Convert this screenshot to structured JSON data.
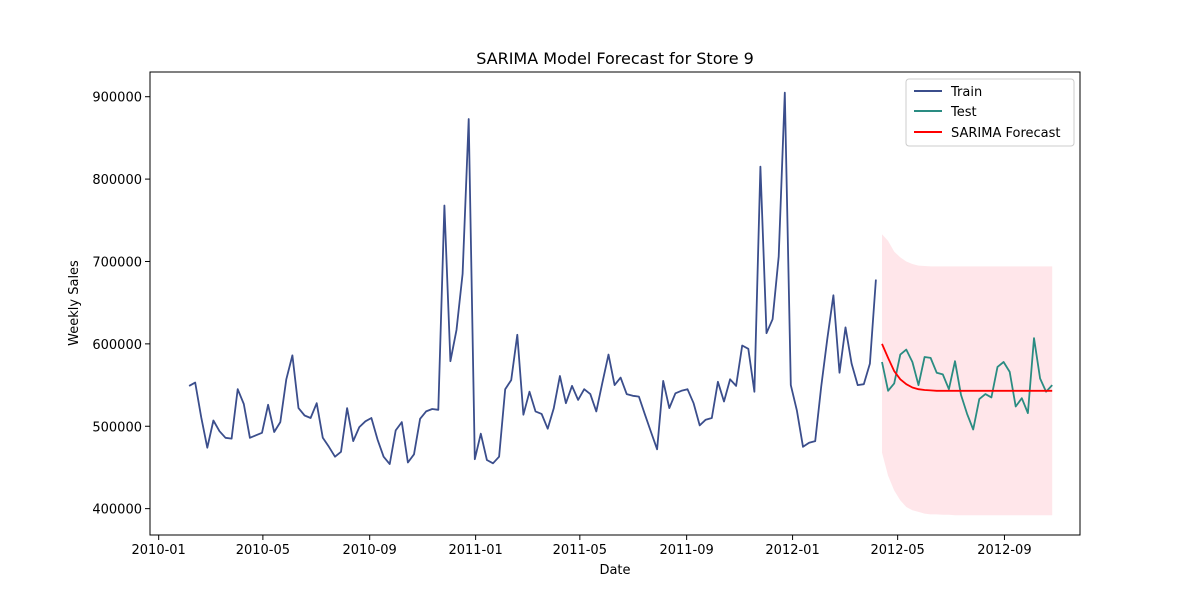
{
  "chart_data": {
    "type": "line",
    "title": "SARIMA Model Forecast for Store 9",
    "xlabel": "Date",
    "ylabel": "Weekly Sales",
    "xlim": [
      "2009-12-22",
      "2012-11-27"
    ],
    "ylim": [
      368000,
      930000
    ],
    "x_ticks": [
      "2010-01-01",
      "2010-05-01",
      "2010-09-01",
      "2011-01-01",
      "2011-05-01",
      "2011-09-01",
      "2012-01-01",
      "2012-05-01",
      "2012-09-01"
    ],
    "x_tick_labels": [
      "2010-01",
      "2010-05",
      "2010-09",
      "2011-01",
      "2011-05",
      "2011-09",
      "2012-01",
      "2012-05",
      "2012-09"
    ],
    "y_ticks": [
      400000,
      500000,
      600000,
      700000,
      800000,
      900000
    ],
    "y_tick_labels": [
      "400000",
      "500000",
      "600000",
      "700000",
      "800000",
      "900000"
    ],
    "grid": false,
    "legend_position": "top-right",
    "colors": {
      "train": "#3b4e8c",
      "test": "#2a8c82",
      "forecast": "#ff0000",
      "confidence_band": "#ffc0cb"
    },
    "series": [
      {
        "name": "Train",
        "start_date": "2010-02-05",
        "interval_days": 7,
        "values": [
          549000,
          553000,
          511000,
          474000,
          507000,
          494000,
          486000,
          485000,
          545000,
          527000,
          486000,
          489000,
          492000,
          526000,
          493000,
          505000,
          557000,
          586000,
          522000,
          513000,
          510000,
          528000,
          486000,
          475000,
          463000,
          469000,
          522000,
          482000,
          499000,
          506000,
          510000,
          484000,
          463000,
          454000,
          495000,
          505000,
          456000,
          466000,
          509000,
          518000,
          521000,
          520000,
          768000,
          579000,
          617000,
          685000,
          873000,
          460000,
          491000,
          459000,
          455000,
          463000,
          545000,
          556000,
          611000,
          514000,
          542000,
          518000,
          515000,
          497000,
          522000,
          561000,
          528000,
          549000,
          532000,
          545000,
          539000,
          518000,
          553000,
          587000,
          550000,
          559000,
          539000,
          537000,
          536000,
          514000,
          493000,
          472000,
          555000,
          522000,
          540000,
          543000,
          545000,
          528000,
          501000,
          508000,
          510000,
          554000,
          530000,
          557000,
          549000,
          598000,
          594000,
          542000,
          815000,
          613000,
          630000,
          706000,
          905000,
          550000,
          519000,
          475000,
          480000,
          482000,
          548000,
          606000,
          659000,
          565000,
          620000,
          576000,
          550000,
          551000,
          576000,
          678000
        ]
      },
      {
        "name": "Test",
        "start_date": "2012-04-13",
        "interval_days": 7,
        "values": [
          578000,
          543000,
          552000,
          587000,
          593000,
          578000,
          550000,
          584000,
          583000,
          565000,
          563000,
          545000,
          579000,
          538000,
          515000,
          496000,
          533000,
          539000,
          535000,
          572000,
          578000,
          566000,
          524000,
          534000,
          516000,
          607000,
          558000,
          542000,
          550000
        ]
      },
      {
        "name": "SARIMA Forecast",
        "start_date": "2012-04-13",
        "interval_days": 7,
        "values": [
          600000,
          583000,
          567000,
          557000,
          551000,
          547000,
          545000,
          544000,
          543500,
          543000,
          543000,
          543000,
          543000,
          543000,
          543000,
          543000,
          543000,
          543000,
          543000,
          543000,
          543000,
          543000,
          543000,
          543000,
          543000,
          543000,
          543000,
          543000,
          543000
        ]
      }
    ],
    "confidence_interval": {
      "start_date": "2012-04-13",
      "interval_days": 7,
      "upper": [
        733000,
        725000,
        712000,
        705000,
        700000,
        697000,
        695000,
        694500,
        694000,
        694000,
        694000,
        694000,
        694000,
        694000,
        694000,
        694000,
        694000,
        694000,
        694000,
        694000,
        694000,
        694000,
        694000,
        694000,
        694000,
        694000,
        694000,
        694000,
        694000
      ],
      "lower": [
        468000,
        440000,
        422000,
        410000,
        402000,
        398000,
        396000,
        394000,
        393000,
        393000,
        392500,
        392500,
        392000,
        392000,
        392000,
        392000,
        392000,
        392000,
        392000,
        392000,
        392000,
        392000,
        392000,
        392000,
        392000,
        392000,
        392000,
        392000,
        392000
      ]
    }
  }
}
